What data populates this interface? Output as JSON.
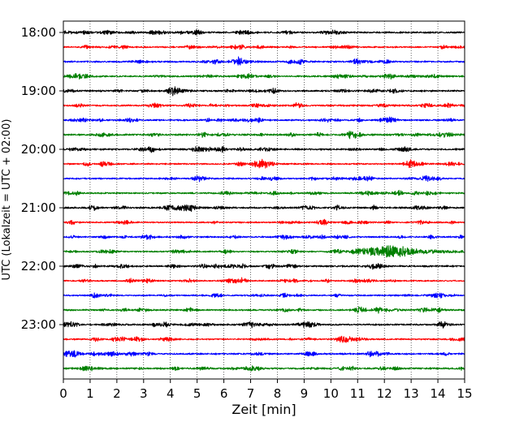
{
  "chart_data": {
    "type": "line",
    "xlabel": "Zeit  [min]",
    "ylabel": "UTC (Lokalzeit = UTC + 02:00)",
    "xlim": [
      0,
      15
    ],
    "x_ticks": [
      0,
      1,
      2,
      3,
      4,
      5,
      6,
      7,
      8,
      9,
      10,
      11,
      12,
      13,
      14,
      15
    ],
    "x_tick_labels": [
      "0",
      "1",
      "2",
      "3",
      "4",
      "5",
      "6",
      "7",
      "8",
      "9",
      "10",
      "11",
      "12",
      "13",
      "14",
      "15"
    ],
    "y_tick_labels": [
      {
        "label": "18:00",
        "row": 0
      },
      {
        "label": "19:00",
        "row": 4
      },
      {
        "label": "20:00",
        "row": 8
      },
      {
        "label": "21:00",
        "row": 12
      },
      {
        "label": "22:00",
        "row": 16
      },
      {
        "label": "23:00",
        "row": 20
      }
    ],
    "grid": {
      "vertical": true,
      "style": "dotted"
    },
    "traces_per_hour": 4,
    "trace_minutes": 15,
    "row_colors": [
      "#000000",
      "#ff0000",
      "#0000ff",
      "#008000"
    ],
    "traces": [
      {
        "start": "18:00",
        "amplitude": 2.4
      },
      {
        "start": "18:15",
        "amplitude": 2.2
      },
      {
        "start": "18:30",
        "amplitude": 2.3
      },
      {
        "start": "18:45",
        "amplitude": 2.3
      },
      {
        "start": "19:00",
        "amplitude": 2.4
      },
      {
        "start": "19:15",
        "amplitude": 2.3
      },
      {
        "start": "19:30",
        "amplitude": 2.3
      },
      {
        "start": "19:45",
        "amplitude": 2.4
      },
      {
        "start": "20:00",
        "amplitude": 2.4
      },
      {
        "start": "20:15",
        "amplitude": 2.1
      },
      {
        "start": "20:30",
        "amplitude": 2.1
      },
      {
        "start": "20:45",
        "amplitude": 2.2
      },
      {
        "start": "21:00",
        "amplitude": 2.5
      },
      {
        "start": "21:15",
        "amplitude": 2.0
      },
      {
        "start": "21:30",
        "amplitude": 2.2
      },
      {
        "start": "21:45",
        "amplitude": 2.0,
        "event": {
          "start_min": 10.5,
          "peak_min": 12.0,
          "end_min": 15.0,
          "peak_amplitude": 8.5
        }
      },
      {
        "start": "22:00",
        "amplitude": 2.5
      },
      {
        "start": "22:15",
        "amplitude": 2.0
      },
      {
        "start": "22:30",
        "amplitude": 2.1
      },
      {
        "start": "22:45",
        "amplitude": 2.3
      },
      {
        "start": "23:00",
        "amplitude": 2.3
      },
      {
        "start": "23:15",
        "amplitude": 2.1
      },
      {
        "start": "23:30",
        "amplitude": 2.3
      },
      {
        "start": "23:45",
        "amplitude": 2.4
      }
    ]
  }
}
